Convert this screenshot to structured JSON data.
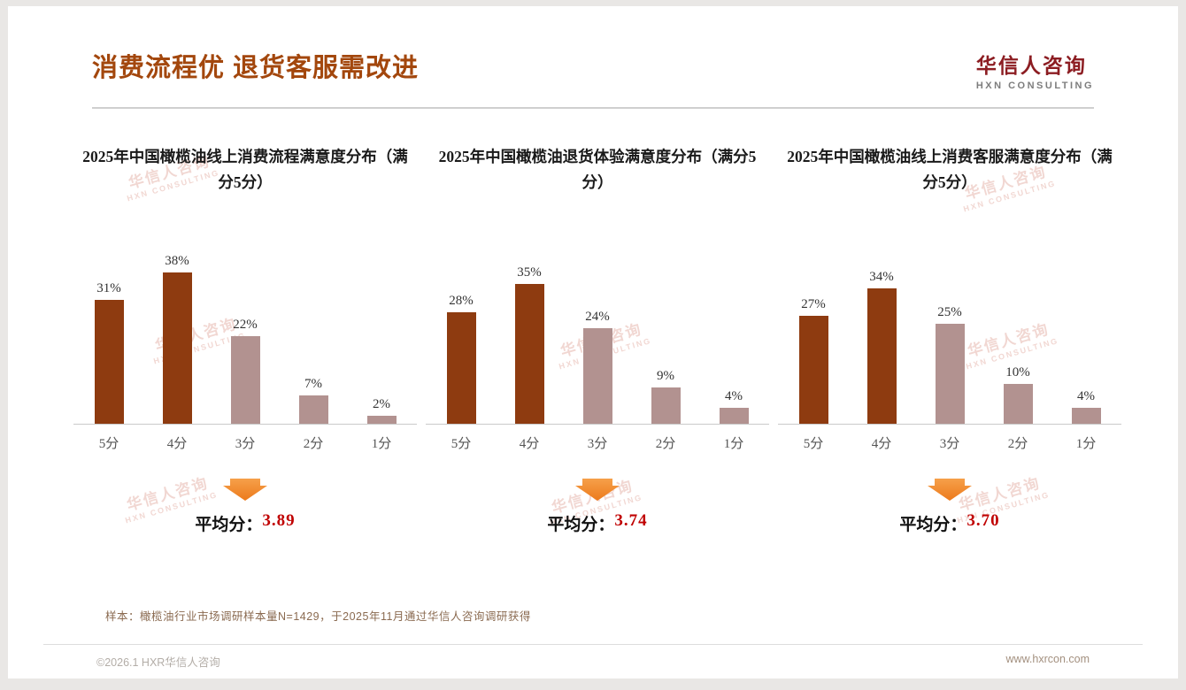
{
  "header": {
    "title": "消费流程优 退货客服需改进",
    "logo_cn": "华信人咨询",
    "logo_en": "HXN CONSULTING"
  },
  "watermark": {
    "line1": "华信人咨询",
    "line2": "HXN CONSULTING"
  },
  "common": {
    "average_prefix": "平均分："
  },
  "chart_data": [
    {
      "type": "bar",
      "title": "2025年中国橄榄油线上消费流程满意度分布（满分5分）",
      "categories": [
        "5分",
        "4分",
        "3分",
        "2分",
        "1分"
      ],
      "values": [
        31,
        38,
        22,
        7,
        2
      ],
      "labels": [
        "31%",
        "38%",
        "22%",
        "7%",
        "2%"
      ],
      "average": "3.89",
      "ylim": [
        0,
        40
      ],
      "legend": "none",
      "grid": false,
      "bar_colors": [
        "#8e3b10",
        "#8e3b10",
        "#b29290",
        "#b29290",
        "#b29290"
      ]
    },
    {
      "type": "bar",
      "title": "2025年中国橄榄油退货体验满意度分布（满分5分）",
      "categories": [
        "5分",
        "4分",
        "3分",
        "2分",
        "1分"
      ],
      "values": [
        28,
        35,
        24,
        9,
        4
      ],
      "labels": [
        "28%",
        "35%",
        "24%",
        "9%",
        "4%"
      ],
      "average": "3.74",
      "ylim": [
        0,
        40
      ],
      "legend": "none",
      "grid": false,
      "bar_colors": [
        "#8e3b10",
        "#8e3b10",
        "#b29290",
        "#b29290",
        "#b29290"
      ]
    },
    {
      "type": "bar",
      "title": "2025年中国橄榄油线上消费客服满意度分布（满分5分）",
      "categories": [
        "5分",
        "4分",
        "3分",
        "2分",
        "1分"
      ],
      "values": [
        27,
        34,
        25,
        10,
        4
      ],
      "labels": [
        "27%",
        "34%",
        "25%",
        "10%",
        "4%"
      ],
      "average": "3.70",
      "ylim": [
        0,
        40
      ],
      "legend": "none",
      "grid": false,
      "bar_colors": [
        "#8e3b10",
        "#8e3b10",
        "#b29290",
        "#b29290",
        "#b29290"
      ]
    }
  ],
  "colors": {
    "title_brown": "#a3470d",
    "bar_dark": "#8e3b10",
    "bar_light": "#b29290",
    "arrow_orange": "#ec7a1c",
    "average_red": "#c00000",
    "logo_red": "#8c1d22"
  },
  "footnote": "样本：橄榄油行业市场调研样本量N=1429，于2025年11月通过华信人咨询调研获得",
  "footer": {
    "left": "©2026.1 HXR华信人咨询",
    "right": "www.hxrcon.com"
  }
}
